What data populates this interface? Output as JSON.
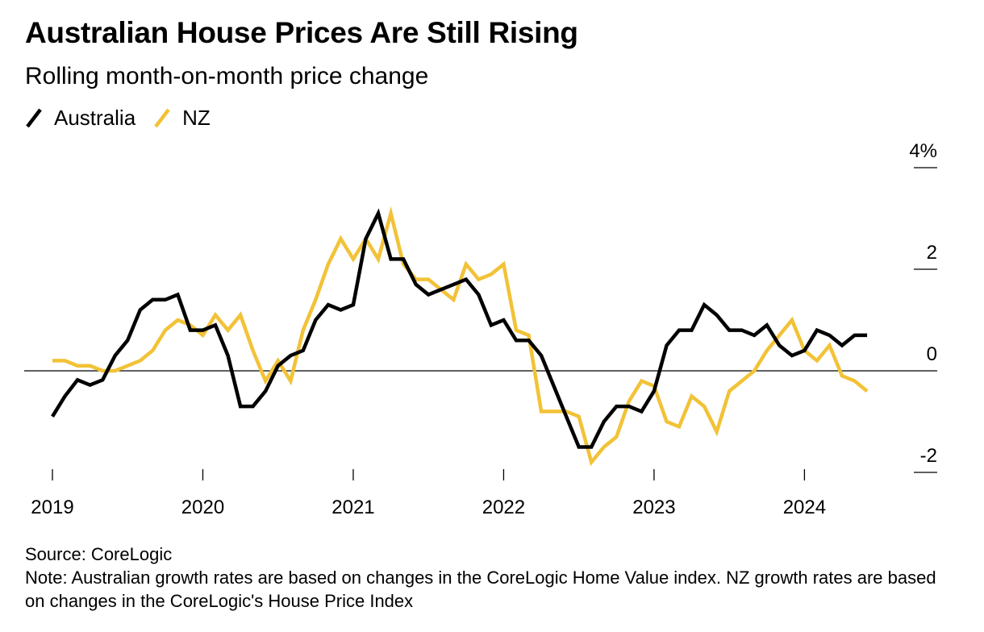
{
  "title": "Australian House Prices Are Still Rising",
  "subtitle": "Rolling month-on-month price change",
  "legend": [
    {
      "name": "Australia",
      "color": "#000000"
    },
    {
      "name": "NZ",
      "color": "#f2c237"
    }
  ],
  "footer": {
    "source": "Source: CoreLogic",
    "note": "Note: Australian growth rates are based on changes in the CoreLogic Home Value index. NZ growth rates are based on changes in the CoreLogic's House Price Index"
  },
  "chart_data": {
    "type": "line",
    "title": "Australian House Prices Are Still Rising",
    "subtitle": "Rolling month-on-month price change",
    "xlabel": "",
    "ylabel": "",
    "x_start": "2019-01",
    "x_ticks": [
      "2019",
      "2020",
      "2021",
      "2022",
      "2023",
      "2024"
    ],
    "y_ticks": [
      {
        "value": 4,
        "label": "4%"
      },
      {
        "value": 2,
        "label": "2"
      },
      {
        "value": 0,
        "label": "0"
      },
      {
        "value": -2,
        "label": "-2"
      }
    ],
    "ylim": [
      -2.1,
      4.1
    ],
    "grid": false,
    "legend_position": "top-left",
    "series": [
      {
        "name": "Australia",
        "color": "#000000",
        "values": [
          -0.9,
          -0.5,
          -0.18,
          -0.28,
          -0.18,
          0.3,
          0.6,
          1.2,
          1.4,
          1.4,
          1.5,
          0.8,
          0.8,
          0.9,
          0.3,
          -0.7,
          -0.7,
          -0.4,
          0.1,
          0.3,
          0.4,
          1.0,
          1.3,
          1.2,
          1.3,
          2.6,
          3.1,
          2.2,
          2.2,
          1.7,
          1.5,
          1.6,
          1.7,
          1.8,
          1.5,
          0.9,
          1.0,
          0.6,
          0.6,
          0.3,
          -0.3,
          -0.9,
          -1.5,
          -1.5,
          -1.0,
          -0.7,
          -0.7,
          -0.8,
          -0.4,
          0.5,
          0.8,
          0.8,
          1.3,
          1.1,
          0.8,
          0.8,
          0.7,
          0.9,
          0.5,
          0.3,
          0.4,
          0.8,
          0.7,
          0.5,
          0.7,
          0.7
        ]
      },
      {
        "name": "NZ",
        "color": "#f2c237",
        "values": [
          0.2,
          0.2,
          0.1,
          0.1,
          0.0,
          0.0,
          0.1,
          0.2,
          0.4,
          0.8,
          1.0,
          0.9,
          0.7,
          1.1,
          0.8,
          1.1,
          0.4,
          -0.2,
          0.2,
          -0.2,
          0.8,
          1.4,
          2.1,
          2.6,
          2.2,
          2.6,
          2.2,
          3.1,
          2.1,
          1.8,
          1.8,
          1.6,
          1.4,
          2.1,
          1.8,
          1.9,
          2.1,
          0.8,
          0.7,
          -0.8,
          -0.8,
          -0.8,
          -0.9,
          -1.8,
          -1.5,
          -1.3,
          -0.6,
          -0.2,
          -0.3,
          -1.0,
          -1.1,
          -0.5,
          -0.7,
          -1.2,
          -0.4,
          -0.2,
          0.0,
          0.4,
          0.7,
          1.0,
          0.4,
          0.2,
          0.5,
          -0.1,
          -0.2,
          -0.4
        ]
      }
    ]
  }
}
